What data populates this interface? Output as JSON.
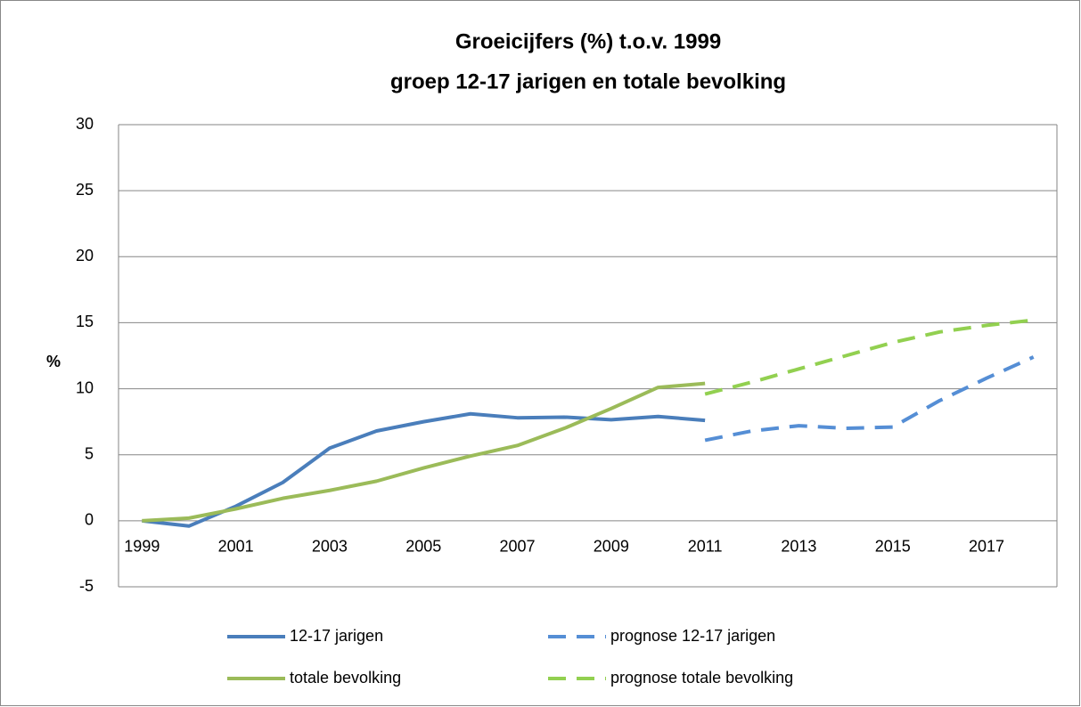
{
  "chart_data": {
    "type": "line",
    "title": [
      "Groeicijfers (%) t.o.v. 1999",
      "groep 12-17 jarigen en totale bevolking"
    ],
    "ylabel": "%",
    "x": [
      1999,
      2000,
      2001,
      2002,
      2003,
      2004,
      2005,
      2006,
      2007,
      2008,
      2009,
      2010,
      2011,
      2012,
      2013,
      2014,
      2015,
      2016,
      2017,
      2018
    ],
    "xlim": [
      1998.5,
      2018.5
    ],
    "xticks": [
      1999,
      2001,
      2003,
      2005,
      2007,
      2009,
      2011,
      2013,
      2015,
      2017
    ],
    "ylim": [
      -5,
      30
    ],
    "yticks": [
      -5,
      0,
      5,
      10,
      15,
      20,
      25,
      30
    ],
    "grid": true,
    "legend": "bottom",
    "series": [
      {
        "name": "12-17 jarigen",
        "color": "#4a7ebb",
        "dashed": false,
        "values": [
          0,
          -0.4,
          1.1,
          2.9,
          5.5,
          6.8,
          7.5,
          8.1,
          7.8,
          7.85,
          7.65,
          7.9,
          7.6,
          null,
          null,
          null,
          null,
          null,
          null,
          null
        ]
      },
      {
        "name": "prognose 12-17 jarigen",
        "color": "#558ed5",
        "dashed": true,
        "values": [
          null,
          null,
          null,
          null,
          null,
          null,
          null,
          null,
          null,
          null,
          null,
          null,
          6.1,
          6.8,
          7.2,
          7.0,
          7.1,
          9.1,
          10.8,
          12.4
        ]
      },
      {
        "name": "totale bevolking",
        "color": "#9bbb59",
        "dashed": false,
        "values": [
          0,
          0.2,
          0.9,
          1.7,
          2.3,
          3.0,
          4.0,
          4.9,
          5.7,
          7.0,
          8.5,
          10.1,
          10.4,
          null,
          null,
          null,
          null,
          null,
          null,
          null
        ]
      },
      {
        "name": "prognose totale bevolking",
        "color": "#92d050",
        "dashed": true,
        "values": [
          null,
          null,
          null,
          null,
          null,
          null,
          null,
          null,
          null,
          null,
          null,
          null,
          9.6,
          10.5,
          11.5,
          12.5,
          13.5,
          14.3,
          14.8,
          15.2
        ]
      }
    ]
  }
}
